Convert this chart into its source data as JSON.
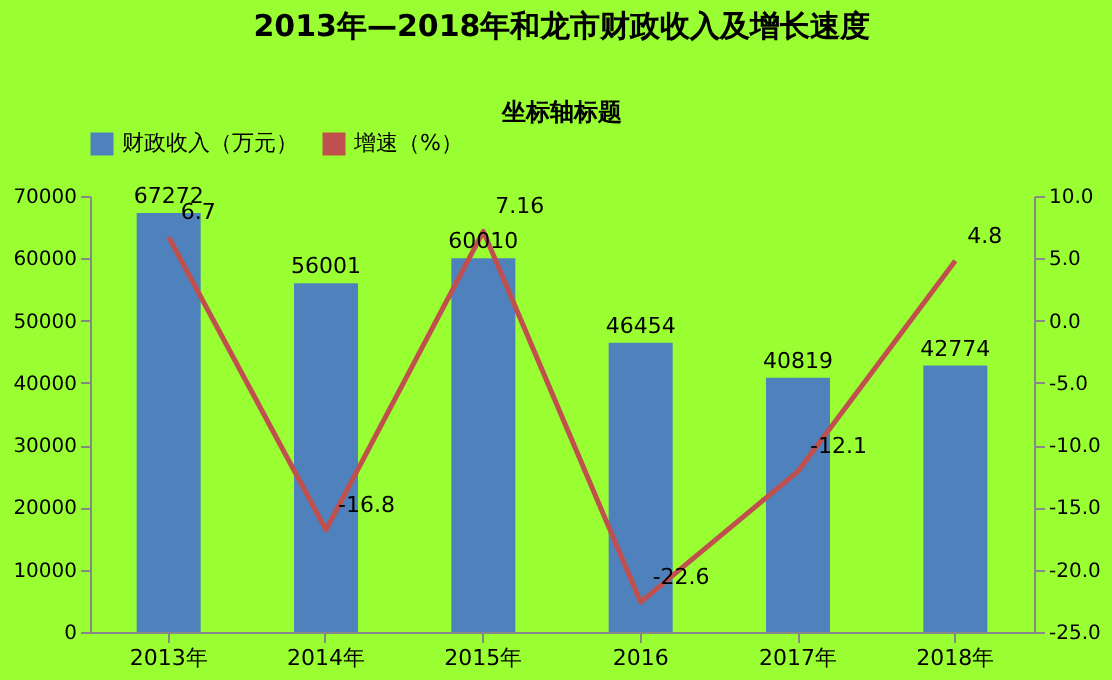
{
  "chart_data": {
    "type": "bar",
    "title": "2013年—2018年和龙市财政收入及增长速度",
    "subtitle": "坐标轴标题",
    "categories": [
      "2013年",
      "2014年",
      "2015年",
      "2016",
      "2017年",
      "2018年"
    ],
    "series": [
      {
        "name": "财政收入（万元）",
        "color": "#4f81bd",
        "values": [
          67272,
          56001,
          60010,
          46454,
          40819,
          42774
        ]
      },
      {
        "name": "增速（%）",
        "type": "line",
        "axis": "y2",
        "color": "#c0504d",
        "values": [
          6.7,
          -16.8,
          7.16,
          -22.6,
          -12.1,
          4.8
        ]
      }
    ],
    "ylim": [
      0,
      70000
    ],
    "yticks": [
      0,
      10000,
      20000,
      30000,
      40000,
      50000,
      60000,
      70000
    ],
    "y2lim": [
      -25,
      10
    ],
    "y2ticks": [
      {
        "value": 10,
        "label": "10.0"
      },
      {
        "value": 5,
        "label": "5.0"
      },
      {
        "value": 0,
        "label": "0.0"
      },
      {
        "value": -5,
        "label": "-5.0"
      },
      {
        "value": -10,
        "label": "-10.0"
      },
      {
        "value": -15,
        "label": "-15.0"
      },
      {
        "value": -20,
        "label": "-20.0"
      },
      {
        "value": -25,
        "label": "-25.0"
      }
    ],
    "data_labels": true,
    "legend": "top"
  }
}
